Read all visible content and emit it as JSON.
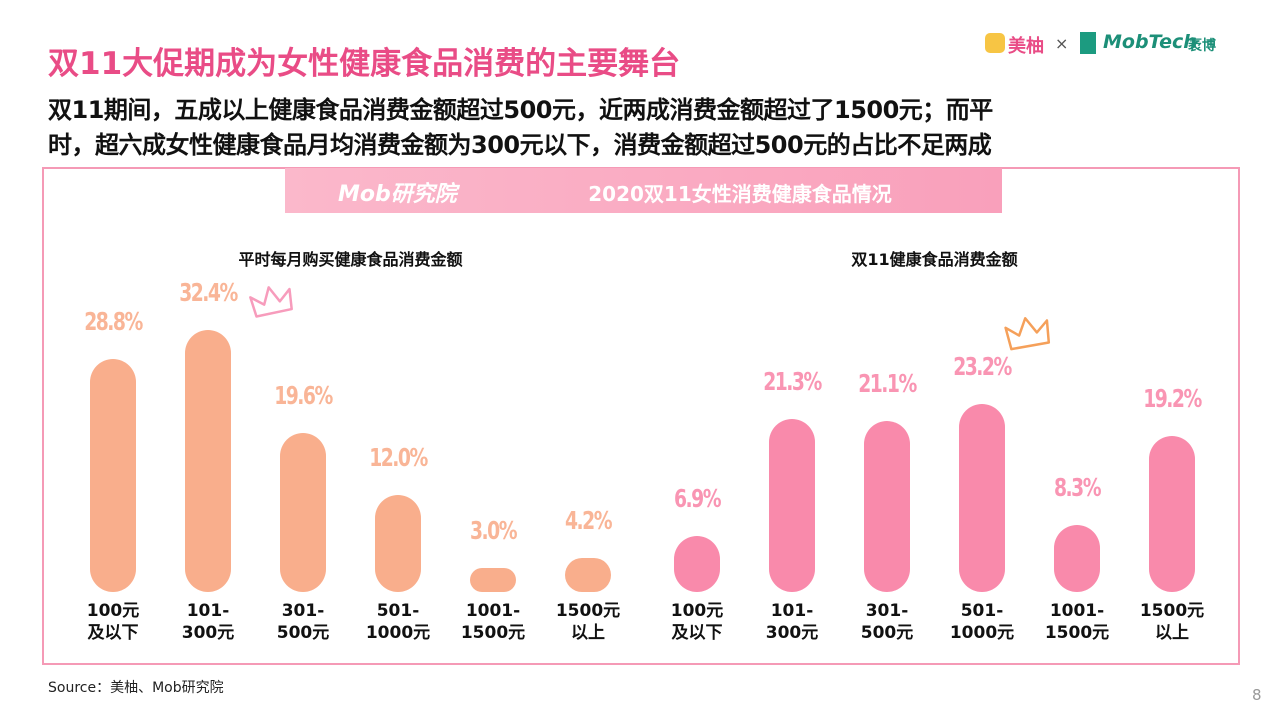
{
  "header": {
    "title": "双11大促期成为女性健康食品消费的主要舞台",
    "subtitle_lines": [
      "双11期间，五成以上健康食品消费金额超过500元，近两成消费金额超过了1500元；而平",
      "时，超六成女性健康食品月均消费金额为300元以下，消费金额超过500元的占比不足两成"
    ],
    "logo_left": "美柚",
    "logo_sep": "×",
    "logo_right": "MobTech",
    "logo_right_cn": "袤博"
  },
  "banner": {
    "logo": "Mob研究院",
    "title": "2020双11女性消费健康食品情况"
  },
  "chart_data": [
    {
      "type": "bar",
      "title": "平时每月购买健康食品消费金额",
      "categories": [
        "100元\n及以下",
        "101-\n300元",
        "301-\n500元",
        "501-\n1000元",
        "1001-\n1500元",
        "1500元\n以上"
      ],
      "values": [
        28.8,
        32.4,
        19.6,
        12.0,
        3.0,
        4.2
      ],
      "value_labels": [
        "28.8%",
        "32.4%",
        "19.6%",
        "12.0%",
        "3.0%",
        "4.2%"
      ],
      "color": "#f9ae8c"
    },
    {
      "type": "bar",
      "title": "双11健康食品消费金额",
      "categories": [
        "100元\n及以下",
        "101-\n300元",
        "301-\n500元",
        "501-\n1000元",
        "1001-\n1500元",
        "1500元\n以上"
      ],
      "values": [
        6.9,
        21.3,
        21.1,
        23.2,
        8.3,
        19.2
      ],
      "value_labels": [
        "6.9%",
        "21.3%",
        "21.1%",
        "23.2%",
        "8.3%",
        "19.2%"
      ],
      "color": "#f98aab"
    }
  ],
  "source": "Source：美柚、Mob研究院",
  "page_number": "8"
}
